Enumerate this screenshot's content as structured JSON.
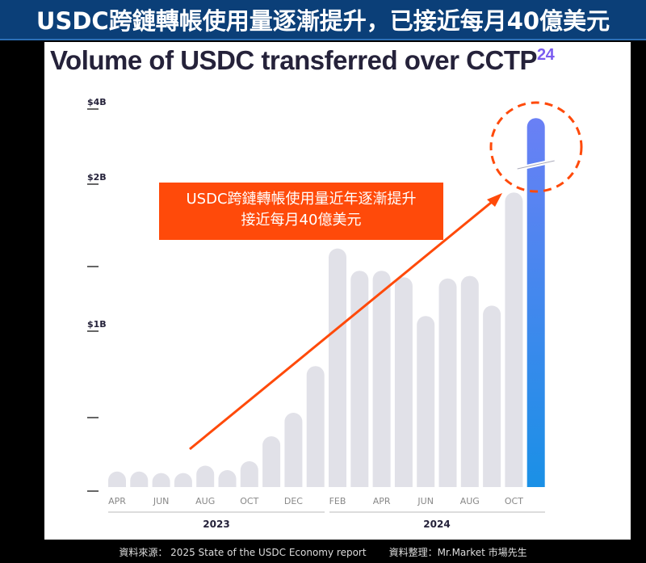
{
  "banner": {
    "title": "USDC跨鏈轉帳使用量逐漸提升，已接近每月40億美元"
  },
  "callout": {
    "line1": "USDC跨鏈轉帳使用量近年逐漸提升",
    "line2": "接近每月40億美元"
  },
  "footer": {
    "source": "資料來源： 2025 State of the USDC Economy report",
    "compiled": "資料整理：Mr.Market 市場先生"
  },
  "colors": {
    "bar": "#e1e1e8",
    "highlight_top": "#6a80f5",
    "highlight_bottom": "#1a90e6",
    "annotation": "#ff4a0a"
  },
  "chart_data": {
    "type": "bar",
    "title": "Volume of USDC transferred over CCTP",
    "title_superscript": "24",
    "categories": [
      "2023-04",
      "2023-05",
      "2023-06",
      "2023-07",
      "2023-08",
      "2023-09",
      "2023-10",
      "2023-11",
      "2023-12",
      "2024-01",
      "2024-02",
      "2024-03",
      "2024-04",
      "2024-05",
      "2024-06",
      "2024-07",
      "2024-08",
      "2024-09",
      "2024-10",
      "2024-11"
    ],
    "values": [
      0.1,
      0.1,
      0.09,
      0.09,
      0.14,
      0.11,
      0.17,
      0.34,
      0.5,
      0.77,
      1.58,
      1.43,
      1.43,
      1.38,
      1.08,
      1.37,
      1.39,
      1.16,
      1.92,
      3.63
    ],
    "unit": "USD billions",
    "x_tick_labels": [
      "APR",
      "JUN",
      "AUG",
      "OCT",
      "DEC",
      "FEB",
      "APR",
      "JUN",
      "AUG",
      "OCT"
    ],
    "x_groups": [
      "2023",
      "2024"
    ],
    "y_ticks": [
      0,
      0.5,
      1,
      1.5,
      2,
      4
    ],
    "y_tick_labels": [
      "",
      "",
      "$1B",
      "",
      "$2B",
      "$4B"
    ],
    "axis_break": "between $2B and $4B",
    "highlight_index": 19,
    "ylim": [
      0,
      4
    ],
    "grid": false
  }
}
